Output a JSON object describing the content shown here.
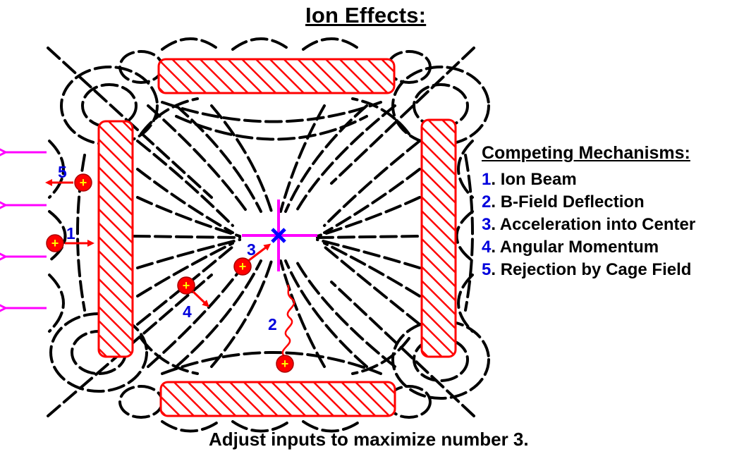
{
  "title": "Ion Effects:",
  "legend": {
    "heading": "Competing Mechanisms:",
    "items": [
      {
        "num": "1",
        "label": ". Ion Beam"
      },
      {
        "num": "2",
        "label": ". B-Field Deflection"
      },
      {
        "num": "3",
        "label": ". Acceleration into Center"
      },
      {
        "num": "4",
        "label": ". Angular Momentum"
      },
      {
        "num": "5",
        "label": ". Rejection by Cage Field"
      }
    ]
  },
  "footer": "Adjust inputs to maximize number 3.",
  "diagram": {
    "markers": [
      "1",
      "2",
      "3",
      "4",
      "5"
    ],
    "ion_symbol": "+"
  },
  "colors": {
    "coil": "#ff0000",
    "ion_fill": "#ff0000",
    "ion_plus": "#ffff00",
    "marker_text": "#0000dd",
    "magenta": "#ff00ff",
    "center_x": "#0000ff",
    "field_lines": "#000000"
  }
}
